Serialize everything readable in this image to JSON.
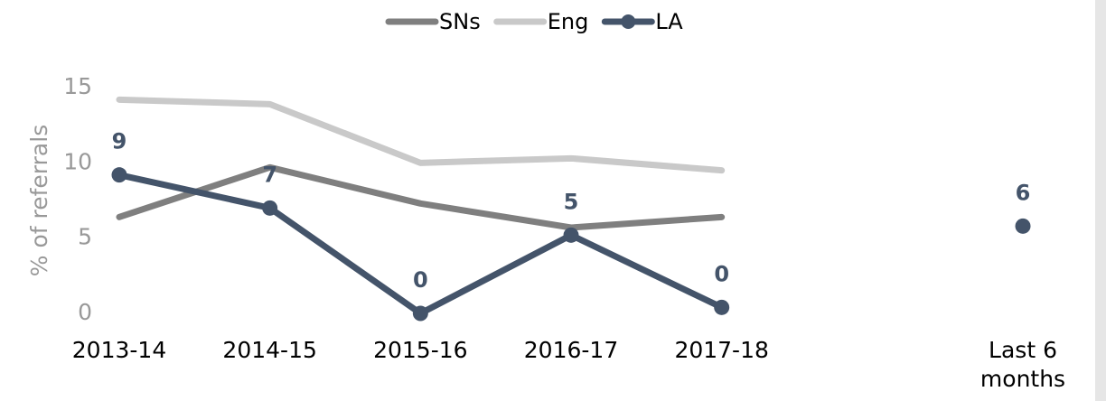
{
  "chart_data": {
    "type": "line",
    "y_label": "% of referrals",
    "categories": [
      "2013-14",
      "2014-15",
      "2015-16",
      "2016-17",
      "2017-18",
      null,
      "Last 6 months"
    ],
    "series": [
      {
        "name": "SNs",
        "color": "#7f7f7f",
        "values": [
          6.4,
          9.7,
          7.3,
          5.7,
          6.4,
          null,
          null
        ]
      },
      {
        "name": "Eng",
        "color": "#c9c9c9",
        "values": [
          14.2,
          13.9,
          10.0,
          10.3,
          9.5,
          null,
          null
        ]
      },
      {
        "name": "LA",
        "color": "#44546a",
        "markers": true,
        "values": [
          9.2,
          7.0,
          0,
          5.2,
          0.4,
          null,
          5.8
        ],
        "value_labels": [
          "9",
          "7",
          "0",
          "5",
          "0",
          null,
          "6"
        ]
      }
    ],
    "ylim": [
      0,
      15
    ],
    "yticks": [
      0,
      5,
      10,
      15
    ],
    "grid": false,
    "legend": "top"
  }
}
